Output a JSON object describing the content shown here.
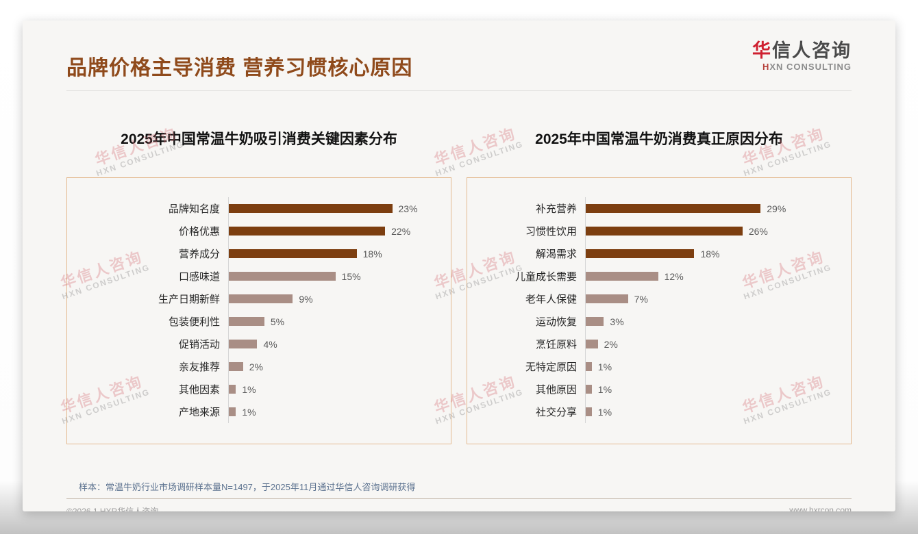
{
  "page": {
    "title": "品牌价格主导消费 营养习惯核心原因",
    "logo": {
      "cn_red": "华",
      "cn_rest": "信人咨询",
      "en_red": "H",
      "en_rest": "XN CONSULTING"
    },
    "note": "样本：常温牛奶行业市场调研样本量N=1497，于2025年11月通过华信人咨询调研获得",
    "footer_left": "©2026.1 HXR华信人咨询",
    "footer_right": "www.hxrcon.com",
    "watermark": {
      "cn": "华信人咨询",
      "en": "HXN CONSULTING"
    }
  },
  "colors": {
    "main_title": "#8f4a1b",
    "bar_highlight": "#7c3e10",
    "bar_normal": "#a98e85",
    "panel_border": "#e4b98f",
    "note_text": "#5d7390"
  },
  "chart_data": [
    {
      "type": "bar",
      "orientation": "horizontal",
      "title": "2025年中国常温牛奶吸引消费关键因素分布",
      "categories": [
        "品牌知名度",
        "价格优惠",
        "营养成分",
        "口感味道",
        "生产日期新鲜",
        "包装便利性",
        "促销活动",
        "亲友推荐",
        "其他因素",
        "产地来源"
      ],
      "values": [
        23,
        22,
        18,
        15,
        9,
        5,
        4,
        2,
        1,
        1
      ],
      "unit": "%",
      "value_labels": true,
      "highlight_top_n": 3,
      "highlight_color": "#7c3e10",
      "normal_color": "#a98e85",
      "xlim": [
        0,
        25
      ],
      "grid": false,
      "legend": "none"
    },
    {
      "type": "bar",
      "orientation": "horizontal",
      "title": "2025年中国常温牛奶消费真正原因分布",
      "categories": [
        "补充营养",
        "习惯性饮用",
        "解渴需求",
        "儿童成长需要",
        "老年人保健",
        "运动恢复",
        "烹饪原料",
        "无特定原因",
        "其他原因",
        "社交分享"
      ],
      "values": [
        29,
        26,
        18,
        12,
        7,
        3,
        2,
        1,
        1,
        1
      ],
      "unit": "%",
      "value_labels": true,
      "highlight_top_n": 3,
      "highlight_color": "#7c3e10",
      "normal_color": "#a98e85",
      "xlim": [
        0,
        32
      ],
      "grid": false,
      "legend": "none"
    }
  ]
}
